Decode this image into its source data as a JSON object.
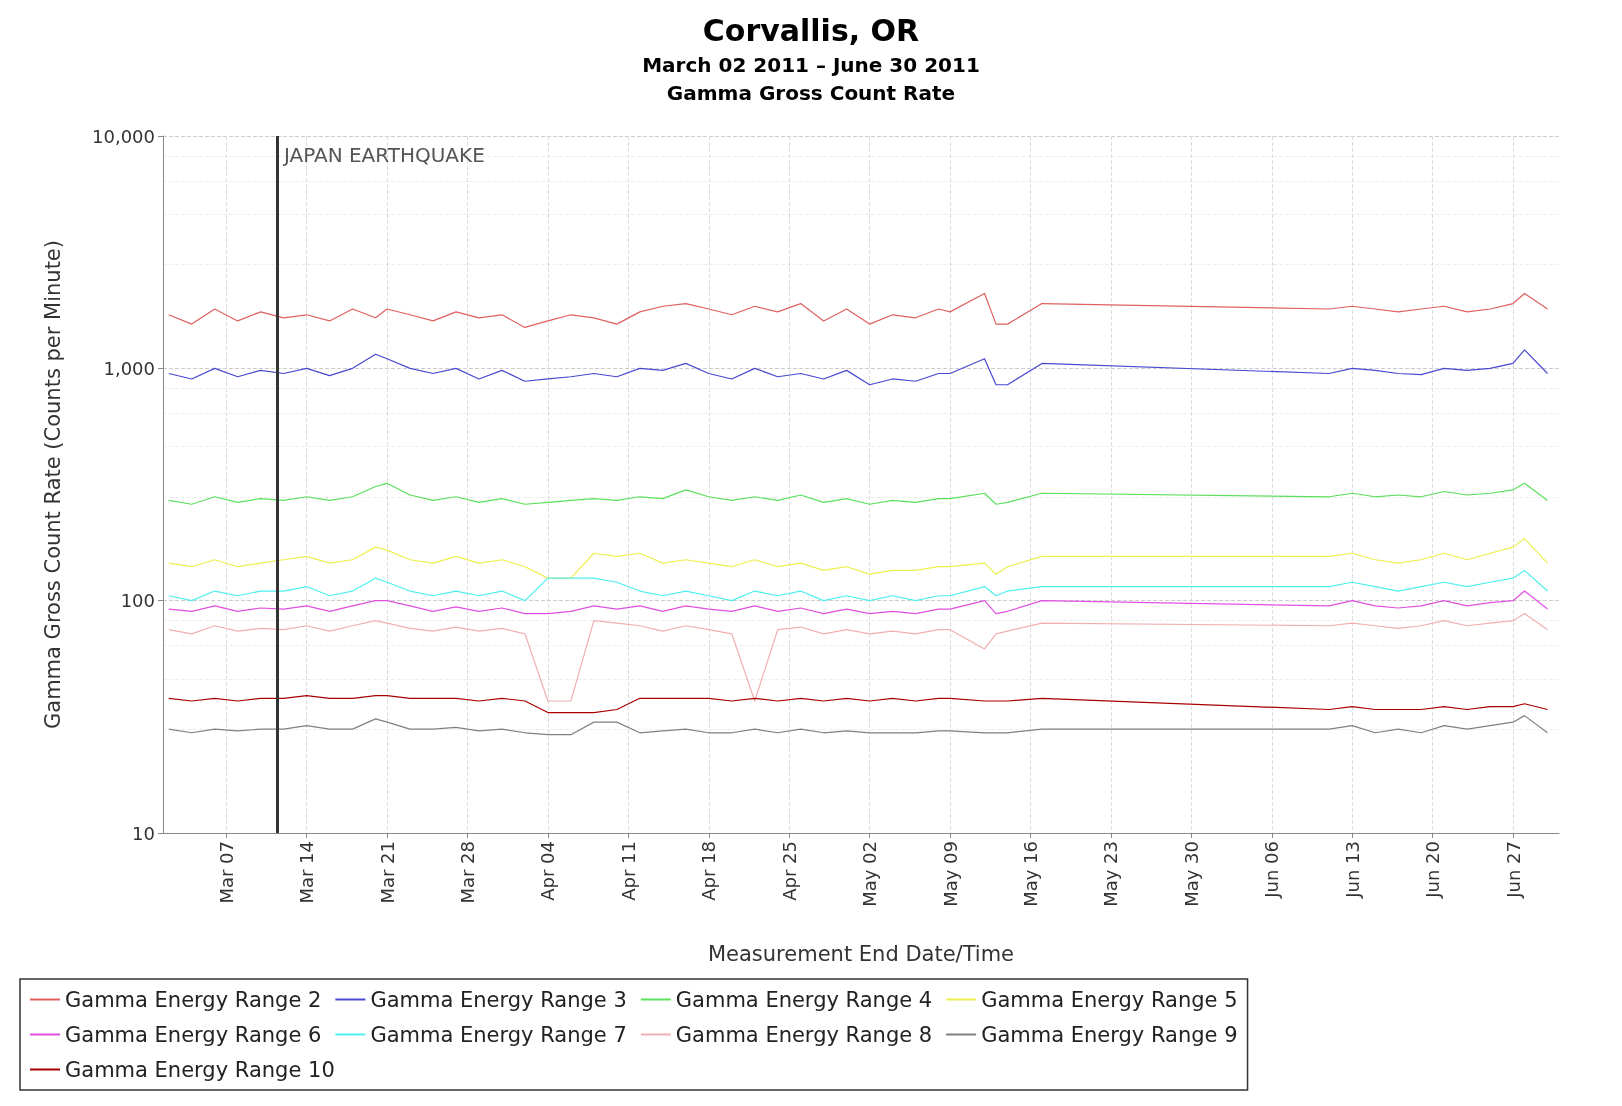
{
  "chart_data": {
    "type": "line",
    "title": "Corvallis, OR",
    "subtitle": "March 02 2011 – June 30 2011\nGamma Gross Count Rate",
    "xlabel": "Measurement End Date/Time",
    "ylabel": "Gamma Gross Count Rate (Counts per Minute)",
    "x": [
      "2011-03-02",
      "2011-03-04",
      "2011-03-06",
      "2011-03-08",
      "2011-03-10",
      "2011-03-12",
      "2011-03-14",
      "2011-03-16",
      "2011-03-18",
      "2011-03-20",
      "2011-03-21",
      "2011-03-23",
      "2011-03-25",
      "2011-03-27",
      "2011-03-29",
      "2011-03-31",
      "2011-04-02",
      "2011-04-04",
      "2011-04-06",
      "2011-04-08",
      "2011-04-10",
      "2011-04-12",
      "2011-04-14",
      "2011-04-16",
      "2011-04-18",
      "2011-04-20",
      "2011-04-22",
      "2011-04-24",
      "2011-04-26",
      "2011-04-28",
      "2011-04-30",
      "2011-05-02",
      "2011-05-04",
      "2011-05-06",
      "2011-05-08",
      "2011-05-09",
      "2011-05-12",
      "2011-05-13",
      "2011-05-14",
      "2011-05-17",
      "2011-06-11",
      "2011-06-13",
      "2011-06-15",
      "2011-06-17",
      "2011-06-19",
      "2011-06-21",
      "2011-06-23",
      "2011-06-25",
      "2011-06-27",
      "2011-06-28",
      "2011-06-30"
    ],
    "series": [
      {
        "name": "Gamma Energy Range 2",
        "color": "#e06060",
        "values": [
          1700,
          1550,
          1800,
          1600,
          1750,
          1650,
          1700,
          1600,
          1800,
          1650,
          1800,
          1700,
          1600,
          1750,
          1650,
          1700,
          1500,
          1600,
          1700,
          1650,
          1550,
          1750,
          1850,
          1900,
          1800,
          1700,
          1850,
          1750,
          1900,
          1600,
          1800,
          1550,
          1700,
          1650,
          1800,
          1750,
          2100,
          1550,
          1550,
          1900,
          1800,
          1850,
          1800,
          1750,
          1800,
          1850,
          1750,
          1800,
          1900,
          2100,
          1800
        ]
      },
      {
        "name": "Gamma Energy Range 3",
        "color": "#4848d0",
        "values": [
          950,
          900,
          1000,
          920,
          980,
          950,
          1000,
          930,
          1000,
          1150,
          1100,
          1000,
          950,
          1000,
          900,
          980,
          880,
          900,
          920,
          950,
          920,
          1000,
          980,
          1050,
          950,
          900,
          1000,
          920,
          950,
          900,
          980,
          850,
          900,
          880,
          950,
          950,
          1100,
          850,
          850,
          1050,
          950,
          1000,
          980,
          950,
          940,
          1000,
          980,
          1000,
          1050,
          1200,
          950
        ]
      },
      {
        "name": "Gamma Energy Range 4",
        "color": "#5ce05c",
        "values": [
          270,
          260,
          280,
          265,
          275,
          270,
          280,
          270,
          280,
          310,
          320,
          285,
          270,
          280,
          265,
          275,
          260,
          265,
          270,
          275,
          270,
          280,
          275,
          300,
          280,
          270,
          280,
          270,
          285,
          265,
          275,
          260,
          270,
          265,
          275,
          275,
          290,
          260,
          265,
          290,
          280,
          290,
          280,
          285,
          280,
          295,
          285,
          290,
          300,
          320,
          270
        ]
      },
      {
        "name": "Gamma Energy Range 5",
        "color": "#eeee50",
        "values": [
          145,
          140,
          150,
          140,
          145,
          150,
          155,
          145,
          150,
          170,
          165,
          150,
          145,
          155,
          145,
          150,
          140,
          125,
          125,
          160,
          155,
          160,
          145,
          150,
          145,
          140,
          150,
          140,
          145,
          135,
          140,
          130,
          135,
          135,
          140,
          140,
          145,
          130,
          140,
          155,
          155,
          160,
          150,
          145,
          150,
          160,
          150,
          160,
          170,
          185,
          145
        ]
      },
      {
        "name": "Gamma Energy Range 6",
        "color": "#e050e0",
        "values": [
          92,
          90,
          95,
          90,
          93,
          92,
          95,
          90,
          95,
          100,
          100,
          95,
          90,
          94,
          90,
          93,
          88,
          88,
          90,
          95,
          92,
          95,
          90,
          95,
          92,
          90,
          95,
          90,
          93,
          88,
          92,
          88,
          90,
          88,
          92,
          92,
          100,
          88,
          90,
          100,
          95,
          100,
          95,
          93,
          95,
          100,
          95,
          98,
          100,
          110,
          92
        ]
      },
      {
        "name": "Gamma Energy Range 7",
        "color": "#50eeee",
        "values": [
          105,
          100,
          110,
          105,
          110,
          110,
          115,
          105,
          110,
          125,
          120,
          110,
          105,
          110,
          105,
          110,
          100,
          125,
          125,
          125,
          120,
          110,
          105,
          110,
          105,
          100,
          110,
          105,
          110,
          100,
          105,
          100,
          105,
          100,
          105,
          105,
          115,
          105,
          110,
          115,
          115,
          120,
          115,
          110,
          115,
          120,
          115,
          120,
          125,
          135,
          110
        ]
      },
      {
        "name": "Gamma Energy Range 8",
        "color": "#f0b0b0",
        "values": [
          75,
          72,
          78,
          74,
          76,
          75,
          78,
          74,
          78,
          82,
          80,
          76,
          74,
          77,
          74,
          76,
          72,
          37,
          37,
          82,
          80,
          78,
          74,
          78,
          75,
          72,
          37,
          75,
          77,
          72,
          75,
          72,
          74,
          72,
          75,
          75,
          62,
          72,
          74,
          80,
          78,
          80,
          78,
          76,
          78,
          82,
          78,
          80,
          82,
          88,
          75
        ]
      },
      {
        "name": "Gamma Energy Range 9",
        "color": "#808080",
        "values": [
          28,
          27,
          28,
          27.5,
          28,
          28,
          29,
          28,
          28,
          31,
          30,
          28,
          28,
          28.5,
          27.5,
          28,
          27,
          26.5,
          26.5,
          30,
          30,
          27,
          27.5,
          28,
          27,
          27,
          28,
          27,
          28,
          27,
          27.5,
          27,
          27,
          27,
          27.5,
          27.5,
          27,
          27,
          27,
          28,
          28,
          29,
          27,
          28,
          27,
          29,
          28,
          29,
          30,
          32,
          27
        ]
      },
      {
        "name": "Gamma Energy Range 10",
        "color": "#a80000",
        "values": [
          38,
          37,
          38,
          37,
          38,
          38,
          39,
          38,
          38,
          39,
          39,
          38,
          38,
          38,
          37,
          38,
          37,
          33,
          33,
          33,
          34,
          38,
          38,
          38,
          38,
          37,
          38,
          37,
          38,
          37,
          38,
          37,
          38,
          37,
          38,
          38,
          37,
          37,
          37,
          38,
          34,
          35,
          34,
          34,
          34,
          35,
          34,
          35,
          35,
          36,
          34
        ]
      }
    ],
    "xlim": [
      "2011-03-01T12:00",
      "2011-07-01"
    ],
    "xticks": [
      {
        "value": "2011-03-07",
        "label": "Mar 07"
      },
      {
        "value": "2011-03-14",
        "label": "Mar 14"
      },
      {
        "value": "2011-03-21",
        "label": "Mar 21"
      },
      {
        "value": "2011-03-28",
        "label": "Mar 28"
      },
      {
        "value": "2011-04-04",
        "label": "Apr 04"
      },
      {
        "value": "2011-04-11",
        "label": "Apr 11"
      },
      {
        "value": "2011-04-18",
        "label": "Apr 18"
      },
      {
        "value": "2011-04-25",
        "label": "Apr 25"
      },
      {
        "value": "2011-05-02",
        "label": "May 02"
      },
      {
        "value": "2011-05-09",
        "label": "May 09"
      },
      {
        "value": "2011-05-16",
        "label": "May 16"
      },
      {
        "value": "2011-05-23",
        "label": "May 23"
      },
      {
        "value": "2011-05-30",
        "label": "May 30"
      },
      {
        "value": "2011-06-06",
        "label": "Jun 06"
      },
      {
        "value": "2011-06-13",
        "label": "Jun 13"
      },
      {
        "value": "2011-06-20",
        "label": "Jun 20"
      },
      {
        "value": "2011-06-27",
        "label": "Jun 27"
      }
    ],
    "ylim": [
      10,
      10000
    ],
    "yticks": [
      10,
      100,
      {
        "value": 1000,
        "label": "1,000"
      },
      {
        "value": 10000,
        "label": "10,000"
      }
    ],
    "log": "y",
    "grid": true,
    "legend": "bottom",
    "marker": "none",
    "line_style": "solid",
    "ref_lines": [
      {
        "axis": "x",
        "value": "2011-03-11T10:00",
        "label": "JAPAN EARTHQUAKE",
        "color": "#333333"
      }
    ]
  }
}
